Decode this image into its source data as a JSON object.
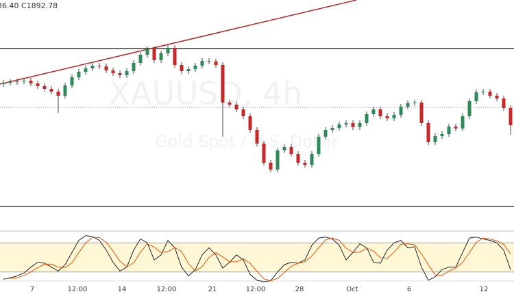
{
  "chart_data": {
    "type": "candlestick",
    "header": "36.40 C1892.78",
    "watermark": "XAUUSD, 4h",
    "watermark_subtitle": "Gold Spot / U.S. Dollar",
    "up_color": "#2e8b57",
    "down_color": "#c62828",
    "xlim": [
      -0.5,
      74.5
    ],
    "ylim": [
      1842,
      1966
    ],
    "xticks": [
      {
        "value": 4.2,
        "label": "7"
      },
      {
        "value": 10.8,
        "label": "12:00"
      },
      {
        "value": 17.3,
        "label": "14"
      },
      {
        "value": 23.8,
        "label": "12:00"
      },
      {
        "value": 30.5,
        "label": "21"
      },
      {
        "value": 36.8,
        "label": "12:00"
      },
      {
        "value": 43.2,
        "label": "28"
      },
      {
        "value": 50.9,
        "label": "Oct"
      },
      {
        "value": 59.2,
        "label": "6"
      },
      {
        "value": 70.1,
        "label": "12"
      }
    ],
    "open": [
      1916.8,
      1917.6,
      1918.0,
      1918.4,
      1918.8,
      1917.2,
      1915.6,
      1914.0,
      1912.4,
      1910.0,
      1916.0,
      1920.8,
      1924.0,
      1926.0,
      1927.6,
      1927.2,
      1924.8,
      1923.2,
      1922.0,
      1924.4,
      1929.2,
      1934.0,
      1937.2,
      1930.8,
      1934.8,
      1938.0,
      1928.0,
      1924.4,
      1925.6,
      1927.6,
      1930.4,
      1930.0,
      1928.0,
      1906.0,
      1904.8,
      1902.0,
      1898.0,
      1890.0,
      1882.0,
      1870.8,
      1866.8,
      1878.0,
      1880.0,
      1876.0,
      1870.8,
      1869.6,
      1876.0,
      1886.0,
      1890.0,
      1891.2,
      1893.2,
      1894.0,
      1891.6,
      1894.0,
      1899.2,
      1902.0,
      1898.0,
      1896.8,
      1898.8,
      1903.6,
      1905.6,
      1906.0,
      1894.0,
      1882.8,
      1886.4,
      1887.6,
      1892.0,
      1890.8,
      1898.0,
      1906.8,
      1912.0,
      1912.4,
      1910.0,
      1908.4,
      1902.8
    ],
    "high": [
      1919.2,
      1919.6,
      1920.0,
      1920.4,
      1920.4,
      1918.8,
      1917.2,
      1915.6,
      1914.0,
      1917.6,
      1922.4,
      1925.6,
      1927.6,
      1929.2,
      1929.2,
      1928.8,
      1926.4,
      1924.8,
      1926.0,
      1930.8,
      1935.6,
      1938.8,
      1938.8,
      1936.4,
      1939.6,
      1939.6,
      1929.6,
      1927.2,
      1929.2,
      1932.0,
      1932.0,
      1931.6,
      1929.6,
      1907.6,
      1906.4,
      1903.6,
      1899.6,
      1891.6,
      1883.6,
      1872.4,
      1879.6,
      1881.6,
      1881.6,
      1877.6,
      1872.4,
      1877.6,
      1887.6,
      1891.6,
      1892.8,
      1894.8,
      1895.6,
      1895.6,
      1895.6,
      1900.8,
      1903.6,
      1903.6,
      1899.6,
      1900.4,
      1905.2,
      1907.2,
      1907.6,
      1907.6,
      1895.6,
      1888.0,
      1889.2,
      1893.6,
      1893.6,
      1899.6,
      1908.4,
      1913.6,
      1914.0,
      1914.0,
      1911.6,
      1910.0,
      1904.4
    ],
    "low": [
      1915.2,
      1916.0,
      1916.4,
      1916.8,
      1915.6,
      1914.0,
      1912.4,
      1910.8,
      1900.0,
      1908.4,
      1914.4,
      1919.2,
      1922.4,
      1924.4,
      1925.6,
      1923.2,
      1921.6,
      1920.4,
      1920.4,
      1922.8,
      1927.6,
      1932.4,
      1929.2,
      1929.2,
      1933.2,
      1926.4,
      1922.8,
      1922.8,
      1924.0,
      1926.0,
      1928.4,
      1926.4,
      1886.0,
      1903.2,
      1900.4,
      1896.4,
      1888.4,
      1880.4,
      1869.2,
      1865.2,
      1865.2,
      1876.4,
      1874.4,
      1869.2,
      1868.0,
      1868.0,
      1874.4,
      1884.4,
      1888.4,
      1889.6,
      1891.6,
      1890.0,
      1890.0,
      1892.4,
      1897.6,
      1896.4,
      1895.2,
      1895.2,
      1897.2,
      1902.0,
      1904.0,
      1892.4,
      1881.2,
      1881.2,
      1884.8,
      1886.0,
      1889.2,
      1889.2,
      1896.4,
      1905.2,
      1910.4,
      1908.4,
      1906.8,
      1901.2,
      1887.2
    ],
    "close": [
      1917.6,
      1918.0,
      1918.4,
      1918.8,
      1917.2,
      1915.6,
      1914.0,
      1912.4,
      1910.0,
      1916.0,
      1920.8,
      1924.0,
      1926.0,
      1927.6,
      1927.2,
      1924.8,
      1923.2,
      1922.0,
      1924.4,
      1929.2,
      1934.0,
      1937.2,
      1930.8,
      1934.8,
      1938.0,
      1928.0,
      1924.4,
      1925.6,
      1927.6,
      1930.4,
      1930.0,
      1928.0,
      1906.0,
      1904.8,
      1902.0,
      1898.0,
      1890.0,
      1882.0,
      1870.8,
      1866.8,
      1878.0,
      1880.0,
      1876.0,
      1870.8,
      1869.6,
      1876.0,
      1886.0,
      1890.0,
      1891.2,
      1893.2,
      1894.0,
      1891.6,
      1894.0,
      1899.2,
      1902.0,
      1898.0,
      1896.8,
      1898.8,
      1903.6,
      1905.6,
      1906.0,
      1894.0,
      1882.8,
      1886.4,
      1887.6,
      1892.0,
      1890.8,
      1898.0,
      1906.8,
      1912.0,
      1912.4,
      1910.0,
      1908.4,
      1902.8,
      1892.78
    ],
    "hlines": [
      1937.6,
      1845.2
    ],
    "hline_color": "#111111",
    "price_line": 1903.2,
    "trendline": {
      "x": [
        -0.5,
        51.5
      ],
      "y": [
        1916.8,
        1966
      ],
      "color": "#b22222"
    },
    "stoch": {
      "ylim": [
        0,
        100
      ],
      "band": [
        20,
        80
      ],
      "series": [
        {
          "color": "#222222",
          "values": [
            5,
            8,
            12,
            18,
            30,
            40,
            38,
            30,
            22,
            35,
            60,
            85,
            95,
            93,
            85,
            65,
            40,
            22,
            30,
            65,
            88,
            80,
            45,
            55,
            85,
            70,
            30,
            12,
            25,
            55,
            70,
            55,
            28,
            40,
            55,
            45,
            15,
            3,
            0,
            2,
            20,
            35,
            40,
            38,
            45,
            75,
            90,
            92,
            88,
            75,
            45,
            60,
            78,
            70,
            40,
            38,
            65,
            80,
            85,
            70,
            72,
            30,
            3,
            10,
            25,
            30,
            30,
            60,
            90,
            92,
            88,
            85,
            80,
            65,
            25
          ]
        },
        {
          "color": "#e65100",
          "values": [
            6,
            7,
            8,
            13,
            20,
            29,
            36,
            36,
            30,
            29,
            39,
            60,
            80,
            91,
            91,
            81,
            63,
            42,
            31,
            39,
            61,
            78,
            71,
            60,
            62,
            70,
            62,
            37,
            22,
            31,
            50,
            60,
            51,
            41,
            41,
            47,
            38,
            21,
            6,
            2,
            7,
            19,
            32,
            38,
            41,
            53,
            70,
            86,
            90,
            85,
            69,
            60,
            61,
            69,
            63,
            49,
            48,
            61,
            77,
            78,
            76,
            57,
            35,
            14,
            13,
            22,
            28,
            40,
            60,
            81,
            90,
            88,
            84,
            77,
            57
          ]
        }
      ]
    }
  }
}
